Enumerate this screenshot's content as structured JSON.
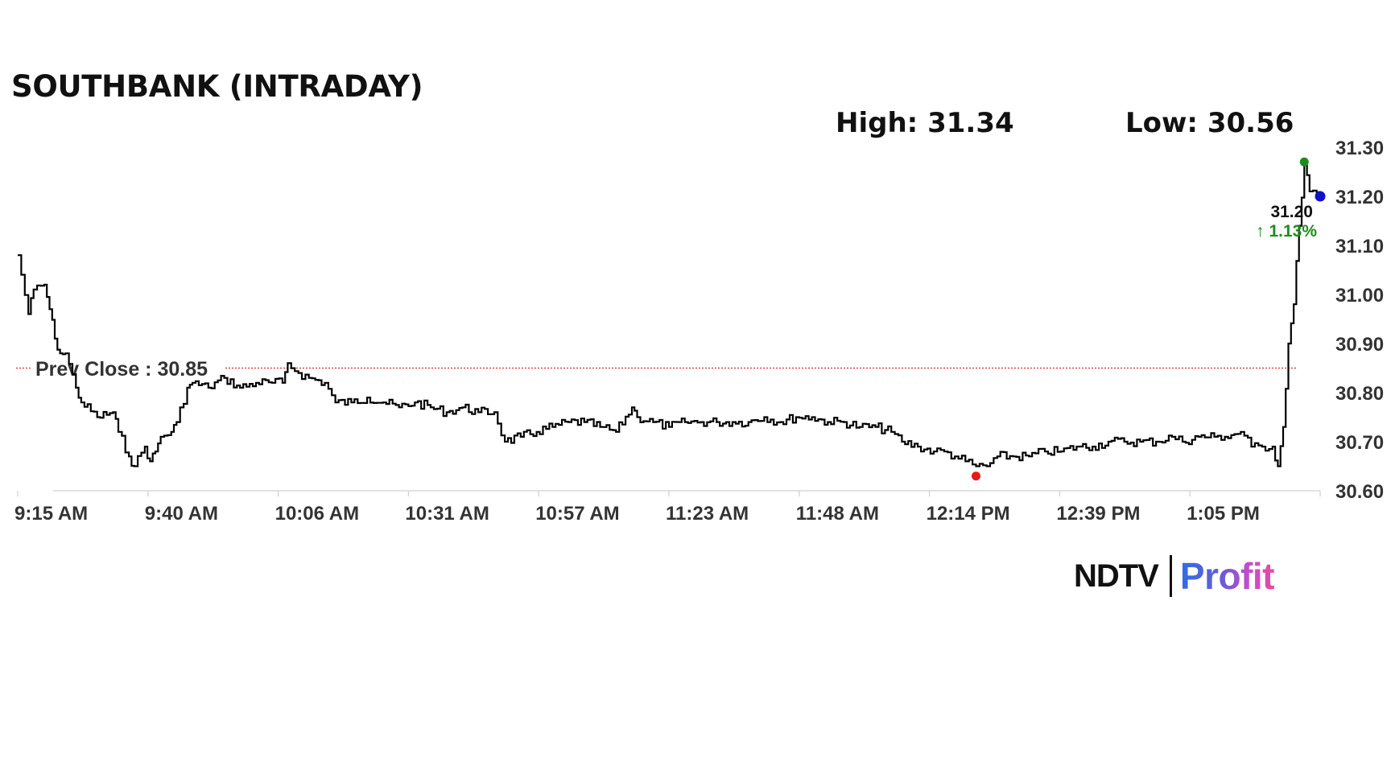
{
  "title": "SOUTHBANK (INTRADAY)",
  "high_label": "High: 31.34",
  "low_label": "Low: 30.56",
  "prev_close_label": "Prev Close : 30.85",
  "last_price_label": "31.20",
  "change_label": "↑ 1.13%",
  "logo": {
    "ndtv": "NDTV",
    "profit": "Profit"
  },
  "colors": {
    "line": "#000000",
    "prev_close": "#d32f2f",
    "high_dot": "#1e8c1e",
    "low_dot": "#e31b1b",
    "last_dot": "#1010cc",
    "change_up": "#1e8c1e",
    "axis_text": "#333333"
  },
  "chart_data": {
    "type": "line",
    "title": "SOUTHBANK (INTRADAY)",
    "xlabel": "",
    "ylabel": "",
    "ylim": [
      30.6,
      31.3
    ],
    "yticks": [
      30.6,
      30.7,
      30.8,
      30.9,
      31.0,
      31.1,
      31.2,
      31.3
    ],
    "ytick_labels": [
      "30.60",
      "30.70",
      "30.80",
      "30.90",
      "31.00",
      "31.10",
      "31.20",
      "31.30"
    ],
    "xticks": [
      "9:15 AM",
      "9:40 AM",
      "10:06 AM",
      "10:31 AM",
      "10:57 AM",
      "11:23 AM",
      "11:48 AM",
      "12:14 PM",
      "12:39 PM",
      "1:05 PM"
    ],
    "prev_close": 30.85,
    "high": 31.34,
    "low": 30.56,
    "last": 31.2,
    "change_pct": 1.13,
    "grid": false,
    "series": [
      {
        "points": [
          [
            "9:15",
            31.08
          ],
          [
            "9:17",
            30.96
          ],
          [
            "9:18",
            31.01
          ],
          [
            "9:20",
            31.02
          ],
          [
            "9:21",
            30.97
          ],
          [
            "9:22",
            30.91
          ],
          [
            "9:23",
            30.88
          ],
          [
            "9:24",
            30.88
          ],
          [
            "9:26",
            30.81
          ],
          [
            "9:27",
            30.78
          ],
          [
            "9:30",
            30.75
          ],
          [
            "9:33",
            30.76
          ],
          [
            "9:34",
            30.72
          ],
          [
            "9:36",
            30.67
          ],
          [
            "9:37",
            30.65
          ],
          [
            "9:39",
            30.69
          ],
          [
            "9:40",
            30.66
          ],
          [
            "9:41",
            30.68
          ],
          [
            "9:42",
            30.71
          ],
          [
            "9:44",
            30.72
          ],
          [
            "9:45",
            30.74
          ],
          [
            "9:47",
            30.81
          ],
          [
            "9:48",
            30.82
          ],
          [
            "9:51",
            30.81
          ],
          [
            "9:54",
            30.83
          ],
          [
            "9:57",
            30.81
          ],
          [
            "10:00",
            30.82
          ],
          [
            "10:03",
            30.82
          ],
          [
            "10:05",
            30.82
          ],
          [
            "10:06",
            30.86
          ],
          [
            "10:08",
            30.84
          ],
          [
            "10:10",
            30.83
          ],
          [
            "10:13",
            30.82
          ],
          [
            "10:15",
            30.78
          ],
          [
            "10:18",
            30.78
          ],
          [
            "10:21",
            30.79
          ],
          [
            "10:24",
            30.78
          ],
          [
            "10:27",
            30.77
          ],
          [
            "10:30",
            30.78
          ],
          [
            "10:33",
            30.77
          ],
          [
            "10:36",
            30.76
          ],
          [
            "10:39",
            30.77
          ],
          [
            "10:42",
            30.76
          ],
          [
            "10:45",
            30.76
          ],
          [
            "10:47",
            30.7
          ],
          [
            "10:50",
            30.71
          ],
          [
            "10:53",
            30.72
          ],
          [
            "10:56",
            30.73
          ],
          [
            "10:59",
            30.74
          ],
          [
            "11:02",
            30.74
          ],
          [
            "11:05",
            30.73
          ],
          [
            "11:08",
            30.72
          ],
          [
            "11:11",
            30.77
          ],
          [
            "11:12",
            30.75
          ],
          [
            "11:15",
            30.74
          ],
          [
            "11:18",
            30.73
          ],
          [
            "11:21",
            30.74
          ],
          [
            "11:24",
            30.74
          ],
          [
            "11:27",
            30.74
          ],
          [
            "11:30",
            30.74
          ],
          [
            "11:33",
            30.74
          ],
          [
            "11:36",
            30.75
          ],
          [
            "11:39",
            30.74
          ],
          [
            "11:42",
            30.75
          ],
          [
            "11:45",
            30.75
          ],
          [
            "11:48",
            30.74
          ],
          [
            "11:51",
            30.74
          ],
          [
            "11:54",
            30.73
          ],
          [
            "11:57",
            30.73
          ],
          [
            "12:00",
            30.72
          ],
          [
            "12:02",
            30.7
          ],
          [
            "12:05",
            30.69
          ],
          [
            "12:08",
            30.68
          ],
          [
            "12:10",
            30.68
          ],
          [
            "12:12",
            30.67
          ],
          [
            "12:14",
            30.66
          ],
          [
            "12:16",
            30.65
          ],
          [
            "12:18",
            30.65
          ],
          [
            "12:20",
            30.67
          ],
          [
            "12:23",
            30.67
          ],
          [
            "12:26",
            30.67
          ],
          [
            "12:29",
            30.68
          ],
          [
            "12:32",
            30.68
          ],
          [
            "12:35",
            30.69
          ],
          [
            "12:38",
            30.69
          ],
          [
            "12:41",
            30.7
          ],
          [
            "12:44",
            30.7
          ],
          [
            "12:47",
            30.7
          ],
          [
            "12:50",
            30.7
          ],
          [
            "12:53",
            30.71
          ],
          [
            "12:55",
            30.7
          ],
          [
            "12:58",
            30.71
          ],
          [
            "13:01",
            30.71
          ],
          [
            "13:03",
            30.71
          ],
          [
            "13:06",
            30.72
          ],
          [
            "13:08",
            30.69
          ],
          [
            "13:10",
            30.69
          ],
          [
            "13:12",
            30.69
          ],
          [
            "13:13",
            30.65
          ],
          [
            "13:14",
            30.73
          ],
          [
            "13:15",
            30.9
          ],
          [
            "13:16",
            30.98
          ],
          [
            "13:17",
            31.14
          ],
          [
            "13:18",
            31.27
          ],
          [
            "13:19",
            31.21
          ],
          [
            "13:21",
            31.2
          ]
        ]
      }
    ]
  }
}
